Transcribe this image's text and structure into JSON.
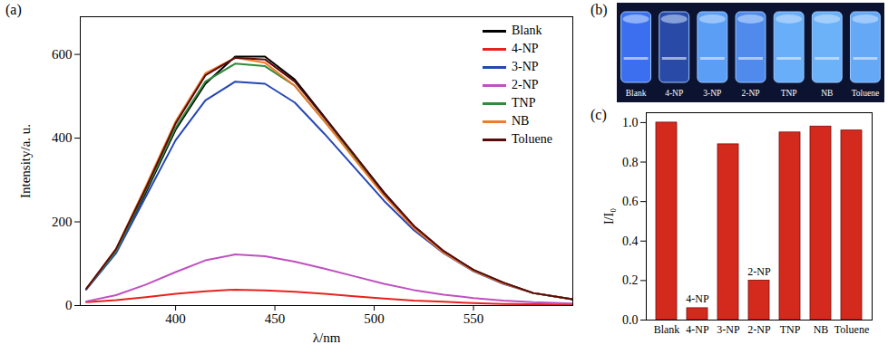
{
  "chart_data": [
    {
      "type": "line",
      "title": "(a)",
      "xlabel": "λ/nm",
      "ylabel": "Intensity/a. u.",
      "x": [
        355,
        370,
        385,
        400,
        415,
        430,
        445,
        460,
        475,
        490,
        505,
        520,
        535,
        550,
        565,
        580,
        600
      ],
      "series": [
        {
          "name": "Blank",
          "color": "#000000",
          "values": [
            40,
            130,
            270,
            420,
            530,
            595,
            595,
            540,
            450,
            360,
            270,
            190,
            130,
            85,
            55,
            30,
            15
          ]
        },
        {
          "name": "4-NP",
          "color": "#e8221e",
          "values": [
            8,
            13,
            20,
            28,
            34,
            38,
            36,
            33,
            28,
            22,
            17,
            12,
            9,
            6,
            4,
            3,
            2
          ]
        },
        {
          "name": "3-NP",
          "color": "#2547b3",
          "values": [
            38,
            125,
            260,
            395,
            490,
            535,
            530,
            485,
            410,
            330,
            250,
            180,
            125,
            82,
            52,
            30,
            15
          ]
        },
        {
          "name": "2-NP",
          "color": "#c050c0",
          "values": [
            10,
            25,
            50,
            80,
            108,
            122,
            118,
            105,
            88,
            70,
            52,
            37,
            26,
            18,
            12,
            8,
            5
          ]
        },
        {
          "name": "TNP",
          "color": "#2e8b3a",
          "values": [
            40,
            130,
            275,
            425,
            535,
            578,
            572,
            525,
            440,
            355,
            265,
            188,
            128,
            84,
            54,
            30,
            15
          ]
        },
        {
          "name": "NB",
          "color": "#f07b2a",
          "values": [
            40,
            135,
            285,
            440,
            555,
            592,
            580,
            525,
            440,
            350,
            262,
            185,
            126,
            83,
            53,
            30,
            15
          ]
        },
        {
          "name": "Toluene",
          "color": "#5a0a0a",
          "values": [
            40,
            135,
            280,
            435,
            550,
            592,
            588,
            535,
            448,
            360,
            268,
            190,
            130,
            85,
            55,
            30,
            15
          ]
        }
      ],
      "xlim": [
        352,
        600
      ],
      "xticks": [
        400,
        450,
        500,
        550
      ],
      "ylim": [
        0,
        690
      ],
      "yticks": [
        0,
        200,
        400,
        600
      ],
      "legend": "upper right",
      "grid": false
    },
    {
      "type": "photo",
      "title": "(b)",
      "categories": [
        "Blank",
        "4-NP",
        "3-NP",
        "2-NP",
        "TNP",
        "NB",
        "Toluene"
      ],
      "colors": [
        "#3c6ff0",
        "#2a4aa8",
        "#5a9ef5",
        "#4f8aec",
        "#68aef8",
        "#6cb2f8",
        "#64a8f6"
      ]
    },
    {
      "type": "bar",
      "title": "(c)",
      "ylabel": "I/I₀",
      "categories": [
        "Blank",
        "4-NP",
        "3-NP",
        "2-NP",
        "TNP",
        "NB",
        "Toluene"
      ],
      "values": [
        1.0,
        0.06,
        0.89,
        0.2,
        0.95,
        0.98,
        0.96
      ],
      "color": "#d42a1e",
      "ylim": [
        0,
        1.05
      ],
      "yticks": [
        {
          "value": 0,
          "label": "0.0"
        },
        {
          "value": 0.2,
          "label": "0.2"
        },
        {
          "value": 0.4,
          "label": "0.4"
        },
        {
          "value": 0.6,
          "label": "0.6"
        },
        {
          "value": 0.8,
          "label": "0.8"
        },
        {
          "value": 1,
          "label": "1.0"
        }
      ],
      "annotations": [
        {
          "category": "4-NP",
          "text": "4-NP"
        },
        {
          "category": "2-NP",
          "text": "2-NP"
        }
      ],
      "grid": false
    }
  ]
}
